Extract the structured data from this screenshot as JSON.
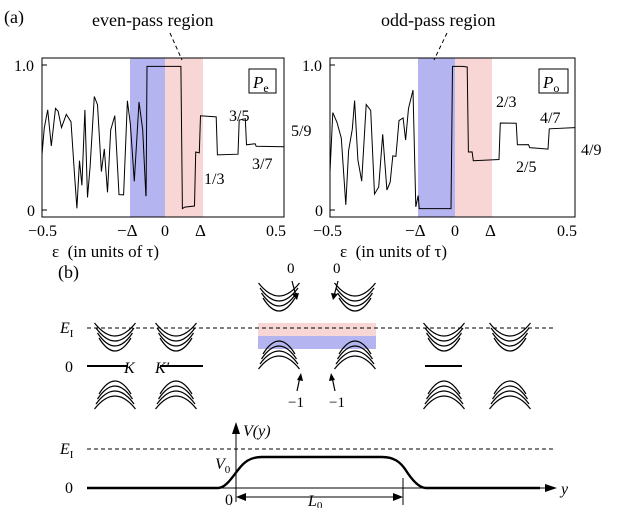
{
  "panel_a": {
    "label": "(a)",
    "colors": {
      "blue_band": "#b4b4f0",
      "pink_band": "#f9d6d6"
    },
    "left": {
      "annotation": "even-pass region",
      "legend": "P",
      "legend_sub": "e",
      "ytick_top": "1.0",
      "ytick_bottom": "0",
      "xticks": {
        "left": "−0.5",
        "neg_delta": "−Δ",
        "zero": "0",
        "delta": "Δ",
        "right": "0.5"
      },
      "xlabel": "ε  (in units of τ)",
      "fractions": [
        "1/3",
        "3/5",
        "3/7",
        "5/9"
      ]
    },
    "right": {
      "annotation": "odd-pass region",
      "legend": "P",
      "legend_sub": "o",
      "ytick_top": "1.0",
      "ytick_bottom": "0",
      "xticks": {
        "left": "−0.5",
        "neg_delta": "−Δ",
        "zero": "0",
        "delta": "Δ",
        "right": "0.5"
      },
      "xlabel": "ε  (in units of τ)",
      "fractions": [
        "2/3",
        "2/5",
        "4/7",
        "4/9"
      ]
    }
  },
  "panel_b": {
    "label": "(b)",
    "bands": {
      "ef_label": "E",
      "ef_sub": "I",
      "zero_label": "0",
      "valley_k": "K",
      "valley_kp": "K′",
      "top_arrow_labels": [
        "0",
        "0"
      ],
      "bottom_arrow_labels": [
        "−1",
        "−1"
      ]
    },
    "potential": {
      "ef_label": "E",
      "ef_sub": "I",
      "v0_label": "V",
      "v0_sub": "0",
      "zero_y_label": "0",
      "vy_label": "V(y)",
      "origin_label": "0",
      "length_label": "L",
      "length_sub": "0",
      "y_axis_label": "y"
    }
  }
}
